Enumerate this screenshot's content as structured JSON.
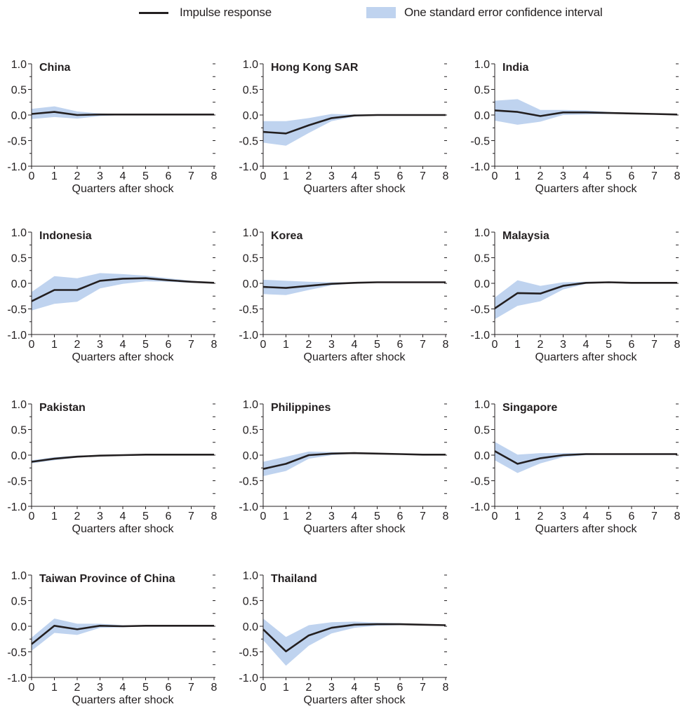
{
  "legend": {
    "line_label": "Impulse response",
    "band_label": "One standard error confidence interval"
  },
  "colors": {
    "line": "#231f20",
    "band": "#bfd3ef"
  },
  "chart_data": [
    {
      "type": "line",
      "title": "China",
      "xlabel": "Quarters after shock",
      "x": [
        0,
        1,
        2,
        3,
        4,
        5,
        6,
        7,
        8
      ],
      "ylim": [
        -1.0,
        1.0
      ],
      "yticks": [
        "1.0",
        "0.5",
        "0.0",
        "-0.5",
        "-1.0"
      ],
      "series": [
        {
          "values": [
            0.02,
            0.06,
            0.0,
            0.01,
            0.01,
            0.01,
            0.01,
            0.01,
            0.01
          ],
          "upper": [
            0.12,
            0.17,
            0.07,
            0.03,
            0.02,
            0.02,
            0.02,
            0.02,
            0.02
          ],
          "lower": [
            -0.08,
            -0.04,
            -0.07,
            -0.02,
            0.0,
            0.01,
            0.01,
            0.01,
            0.01
          ]
        }
      ]
    },
    {
      "type": "line",
      "title": "Hong Kong SAR",
      "xlabel": "Quarters after shock",
      "x": [
        0,
        1,
        2,
        3,
        4,
        5,
        6,
        7,
        8
      ],
      "ylim": [
        -1.0,
        1.0
      ],
      "yticks": [
        "1.0",
        "0.5",
        "0.0",
        "-0.5",
        "-1.0"
      ],
      "series": [
        {
          "values": [
            -0.33,
            -0.36,
            -0.2,
            -0.06,
            -0.01,
            0.0,
            0.0,
            0.0,
            0.0
          ],
          "upper": [
            -0.12,
            -0.12,
            -0.06,
            0.02,
            0.01,
            0.01,
            0.01,
            0.01,
            0.01
          ],
          "lower": [
            -0.54,
            -0.6,
            -0.35,
            -0.12,
            -0.03,
            -0.01,
            -0.01,
            -0.01,
            -0.01
          ]
        }
      ]
    },
    {
      "type": "line",
      "title": "India",
      "xlabel": "Quarters after shock",
      "x": [
        0,
        1,
        2,
        3,
        4,
        5,
        6,
        7,
        8
      ],
      "ylim": [
        -1.0,
        1.0
      ],
      "yticks": [
        "1.0",
        "0.5",
        "0.0",
        "-0.5",
        "-1.0"
      ],
      "series": [
        {
          "values": [
            0.09,
            0.06,
            -0.02,
            0.05,
            0.05,
            0.04,
            0.03,
            0.02,
            0.01
          ],
          "upper": [
            0.28,
            0.31,
            0.1,
            0.1,
            0.09,
            0.06,
            0.04,
            0.03,
            0.02
          ],
          "lower": [
            -0.11,
            -0.19,
            -0.13,
            0.0,
            0.01,
            0.02,
            0.02,
            0.01,
            0.01
          ]
        }
      ]
    },
    {
      "type": "line",
      "title": "Indonesia",
      "xlabel": "Quarters after shock",
      "x": [
        0,
        1,
        2,
        3,
        4,
        5,
        6,
        7,
        8
      ],
      "ylim": [
        -1.0,
        1.0
      ],
      "yticks": [
        "1.0",
        "0.5",
        "0.0",
        "-0.5",
        "-1.0"
      ],
      "series": [
        {
          "values": [
            -0.35,
            -0.13,
            -0.13,
            0.05,
            0.09,
            0.1,
            0.06,
            0.03,
            0.01
          ],
          "upper": [
            -0.17,
            0.14,
            0.1,
            0.2,
            0.18,
            0.15,
            0.1,
            0.05,
            0.02
          ],
          "lower": [
            -0.53,
            -0.4,
            -0.36,
            -0.1,
            -0.01,
            0.04,
            0.03,
            0.01,
            0.0
          ]
        }
      ]
    },
    {
      "type": "line",
      "title": "Korea",
      "xlabel": "Quarters after shock",
      "x": [
        0,
        1,
        2,
        3,
        4,
        5,
        6,
        7,
        8
      ],
      "ylim": [
        -1.0,
        1.0
      ],
      "yticks": [
        "1.0",
        "0.5",
        "0.0",
        "-0.5",
        "-1.0"
      ],
      "series": [
        {
          "values": [
            -0.07,
            -0.09,
            -0.05,
            -0.01,
            0.01,
            0.02,
            0.02,
            0.02,
            0.02
          ],
          "upper": [
            0.07,
            0.05,
            0.03,
            0.02,
            0.02,
            0.03,
            0.03,
            0.03,
            0.03
          ],
          "lower": [
            -0.21,
            -0.23,
            -0.13,
            -0.04,
            0.0,
            0.01,
            0.01,
            0.01,
            0.01
          ]
        }
      ]
    },
    {
      "type": "line",
      "title": "Malaysia",
      "xlabel": "Quarters after shock",
      "x": [
        0,
        1,
        2,
        3,
        4,
        5,
        6,
        7,
        8
      ],
      "ylim": [
        -1.0,
        1.0
      ],
      "yticks": [
        "1.0",
        "0.5",
        "0.0",
        "-0.5",
        "-1.0"
      ],
      "series": [
        {
          "values": [
            -0.49,
            -0.19,
            -0.2,
            -0.05,
            0.01,
            0.02,
            0.01,
            0.01,
            0.01
          ],
          "upper": [
            -0.28,
            0.06,
            -0.05,
            0.02,
            0.03,
            0.03,
            0.02,
            0.02,
            0.02
          ],
          "lower": [
            -0.7,
            -0.44,
            -0.35,
            -0.12,
            -0.01,
            0.01,
            0.0,
            0.0,
            0.0
          ]
        }
      ]
    },
    {
      "type": "line",
      "title": "Pakistan",
      "xlabel": "Quarters after shock",
      "x": [
        0,
        1,
        2,
        3,
        4,
        5,
        6,
        7,
        8
      ],
      "ylim": [
        -1.0,
        1.0
      ],
      "yticks": [
        "1.0",
        "0.5",
        "0.0",
        "-0.5",
        "-1.0"
      ],
      "series": [
        {
          "values": [
            -0.13,
            -0.07,
            -0.03,
            -0.01,
            0.0,
            0.01,
            0.01,
            0.01,
            0.01
          ],
          "upper": [
            -0.1,
            -0.04,
            -0.01,
            0.0,
            0.01,
            0.02,
            0.02,
            0.02,
            0.02
          ],
          "lower": [
            -0.16,
            -0.1,
            -0.05,
            -0.02,
            -0.01,
            0.0,
            0.0,
            0.0,
            0.0
          ]
        }
      ]
    },
    {
      "type": "line",
      "title": "Philippines",
      "xlabel": "Quarters after shock",
      "x": [
        0,
        1,
        2,
        3,
        4,
        5,
        6,
        7,
        8
      ],
      "ylim": [
        -1.0,
        1.0
      ],
      "yticks": [
        "1.0",
        "0.5",
        "0.0",
        "-0.5",
        "-1.0"
      ],
      "series": [
        {
          "values": [
            -0.27,
            -0.17,
            0.0,
            0.03,
            0.04,
            0.03,
            0.02,
            0.01,
            0.01
          ],
          "upper": [
            -0.13,
            -0.03,
            0.07,
            0.06,
            0.05,
            0.04,
            0.03,
            0.02,
            0.02
          ],
          "lower": [
            -0.41,
            -0.31,
            -0.07,
            0.0,
            0.03,
            0.02,
            0.01,
            0.0,
            0.0
          ]
        }
      ]
    },
    {
      "type": "line",
      "title": "Singapore",
      "xlabel": "Quarters after shock",
      "x": [
        0,
        1,
        2,
        3,
        4,
        5,
        6,
        7,
        8
      ],
      "ylim": [
        -1.0,
        1.0
      ],
      "yticks": [
        "1.0",
        "0.5",
        "0.0",
        "-0.5",
        "-1.0"
      ],
      "series": [
        {
          "values": [
            0.08,
            -0.17,
            -0.06,
            0.0,
            0.02,
            0.02,
            0.02,
            0.02,
            0.02
          ],
          "upper": [
            0.26,
            0.01,
            0.04,
            0.04,
            0.04,
            0.03,
            0.03,
            0.03,
            0.03
          ],
          "lower": [
            -0.1,
            -0.35,
            -0.16,
            -0.04,
            0.0,
            0.01,
            0.01,
            0.01,
            0.01
          ]
        }
      ]
    },
    {
      "type": "line",
      "title": "Taiwan Province of China",
      "xlabel": "Quarters after shock",
      "x": [
        0,
        1,
        2,
        3,
        4,
        5,
        6,
        7,
        8
      ],
      "ylim": [
        -1.0,
        1.0
      ],
      "yticks": [
        "1.0",
        "0.5",
        "0.0",
        "-0.5",
        "-1.0"
      ],
      "series": [
        {
          "values": [
            -0.35,
            0.01,
            -0.06,
            0.01,
            0.0,
            0.01,
            0.01,
            0.01,
            0.01
          ],
          "upper": [
            -0.22,
            0.15,
            0.05,
            0.05,
            0.02,
            0.02,
            0.02,
            0.02,
            0.02
          ],
          "lower": [
            -0.48,
            -0.13,
            -0.17,
            -0.03,
            -0.02,
            0.0,
            0.0,
            0.0,
            0.0
          ]
        }
      ]
    },
    {
      "type": "line",
      "title": "Thailand",
      "xlabel": "Quarters after shock",
      "x": [
        0,
        1,
        2,
        3,
        4,
        5,
        6,
        7,
        8
      ],
      "ylim": [
        -1.0,
        1.0
      ],
      "yticks": [
        "1.0",
        "0.5",
        "0.0",
        "-0.5",
        "-1.0"
      ],
      "series": [
        {
          "values": [
            -0.06,
            -0.49,
            -0.18,
            -0.03,
            0.03,
            0.04,
            0.04,
            0.03,
            0.02
          ],
          "upper": [
            0.15,
            -0.21,
            0.02,
            0.08,
            0.09,
            0.07,
            0.06,
            0.04,
            0.03
          ],
          "lower": [
            -0.27,
            -0.77,
            -0.38,
            -0.14,
            -0.03,
            0.01,
            0.02,
            0.02,
            0.01
          ]
        }
      ]
    }
  ]
}
